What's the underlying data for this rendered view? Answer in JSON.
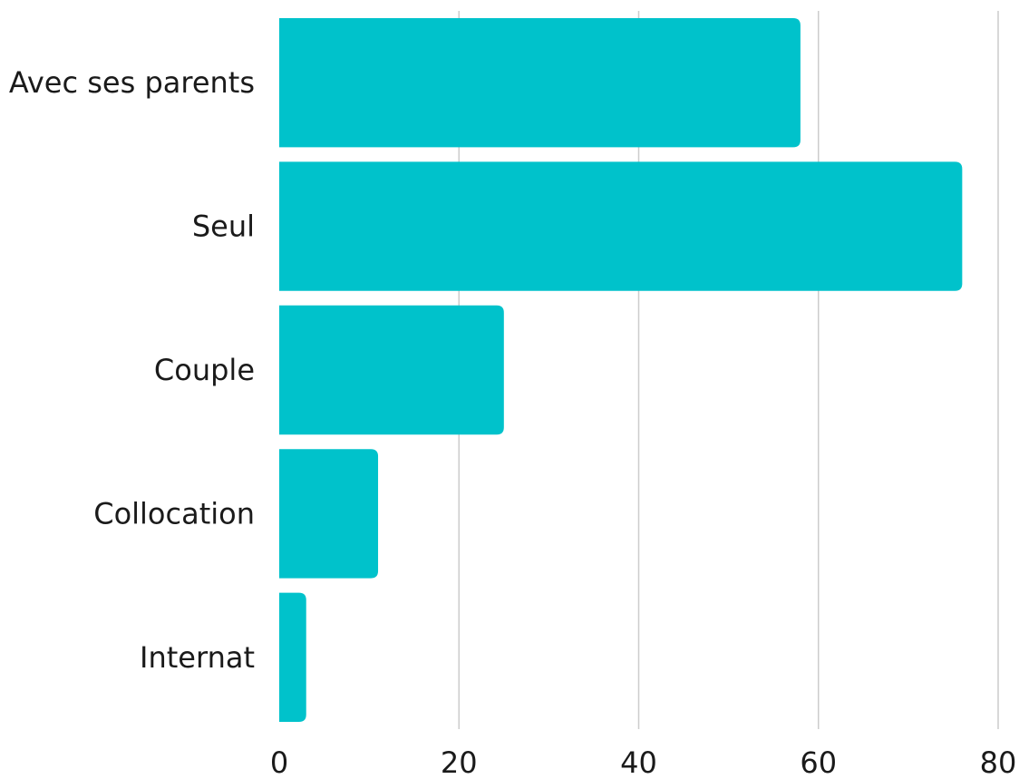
{
  "chart_data": {
    "type": "bar",
    "orientation": "horizontal",
    "categories": [
      "Avec ses parents",
      "Seul",
      "Couple",
      "Collocation",
      "Internat"
    ],
    "values": [
      58,
      76,
      25,
      11,
      3
    ],
    "xlim": [
      0,
      80
    ],
    "xticks": [
      "0",
      "20",
      "40",
      "60",
      "80"
    ],
    "title": "",
    "xlabel": "",
    "ylabel": "",
    "grid": "vertical",
    "legend": "none",
    "bar_color": "#00C2CB"
  }
}
